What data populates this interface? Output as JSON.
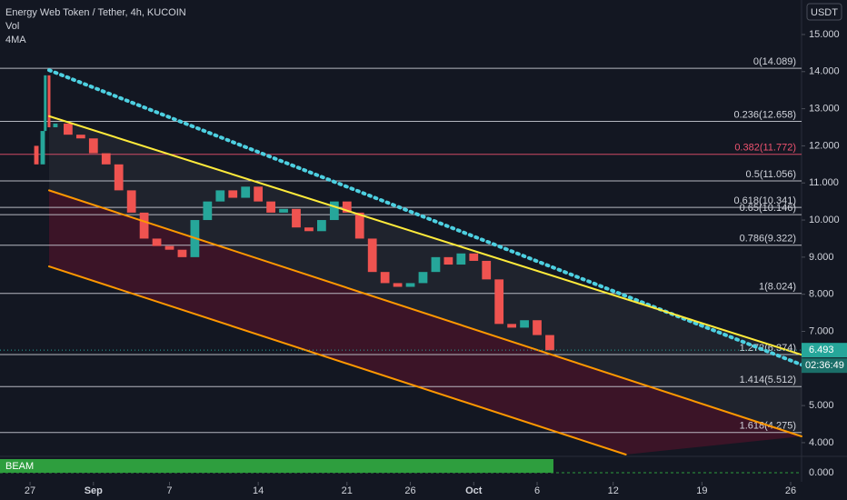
{
  "chart_data": {
    "type": "candles",
    "title": "Energy Web Token / Tether, 4h, KUCOIN",
    "indicators_header": [
      "Vol",
      "4MA"
    ],
    "currency": "USDT",
    "x": [
      0,
      0.5,
      1,
      1.2,
      1.5,
      2,
      3,
      4,
      5,
      6,
      7,
      8,
      9,
      10,
      11,
      12,
      13,
      14,
      15,
      16,
      17,
      18,
      19,
      20,
      21,
      22,
      23,
      24,
      25,
      26,
      27,
      28,
      29,
      30,
      31,
      32,
      33,
      34,
      35,
      36,
      37,
      38,
      39,
      40,
      41
    ],
    "values": [
      12.0,
      11.5,
      12.4,
      13.9,
      12.5,
      12.6,
      12.3,
      12.2,
      11.8,
      11.5,
      10.8,
      10.2,
      9.5,
      9.3,
      9.2,
      9.0,
      10.0,
      10.5,
      10.8,
      10.6,
      10.9,
      10.5,
      10.2,
      10.3,
      9.8,
      9.7,
      10.0,
      10.5,
      10.2,
      9.5,
      8.6,
      8.3,
      8.2,
      8.3,
      8.6,
      9.0,
      8.8,
      9.1,
      8.9,
      8.4,
      7.2,
      7.1,
      7.3,
      6.9,
      6.49
    ],
    "up_color": "#26a69a",
    "down_color": "#ef5350",
    "xlim": [
      -2.37,
      60.86
    ],
    "xticks": [
      {
        "value": 0,
        "label": "27"
      },
      {
        "value": 5,
        "label": "Sep"
      },
      {
        "value": 11,
        "label": "7"
      },
      {
        "value": 18,
        "label": "14"
      },
      {
        "value": 25,
        "label": "21"
      },
      {
        "value": 30,
        "label": "26"
      },
      {
        "value": 35,
        "label": "Oct"
      },
      {
        "value": 40,
        "label": "6"
      },
      {
        "value": 46,
        "label": "12"
      },
      {
        "value": 53,
        "label": "19"
      },
      {
        "value": 60,
        "label": "26"
      }
    ],
    "ylim": [
      3.68,
      15.93
    ],
    "yticks": [
      {
        "value": 15,
        "label": "15.000"
      },
      {
        "value": 14,
        "label": "14.000"
      },
      {
        "value": 13,
        "label": "13.000"
      },
      {
        "value": 12,
        "label": "12.000"
      },
      {
        "value": 11,
        "label": "11.000"
      },
      {
        "value": 10,
        "label": "10.000"
      },
      {
        "value": 9,
        "label": "9.000"
      },
      {
        "value": 8,
        "label": "8.000"
      },
      {
        "value": 7,
        "label": "7.000"
      },
      {
        "value": 5,
        "label": "5.000"
      },
      {
        "value": 4,
        "label": "4.000"
      }
    ],
    "fib_levels": [
      {
        "value": 14.089,
        "label": "0(14.089)",
        "color": "#d1d4dc"
      },
      {
        "value": 12.658,
        "label": "0.236(12.658)",
        "color": "#d1d4dc"
      },
      {
        "value": 11.772,
        "label": "0.382(11.772)",
        "color": "#ef5370"
      },
      {
        "value": 11.056,
        "label": "0.5(11.056)",
        "color": "#d1d4dc"
      },
      {
        "value": 10.341,
        "label": "0.618(10.341)",
        "color": "#d1d4dc"
      },
      {
        "value": 10.146,
        "label": "0.65(10.146)",
        "color": "#d1d4dc"
      },
      {
        "value": 9.322,
        "label": "0.786(9.322)",
        "color": "#d1d4dc"
      },
      {
        "value": 8.024,
        "label": "1(8.024)",
        "color": "#d1d4dc"
      },
      {
        "value": 6.374,
        "label": "1.272(6.374)",
        "color": "#d1d4dc"
      },
      {
        "value": 5.512,
        "label": "1.414(5.512)",
        "color": "#d1d4dc"
      },
      {
        "value": 4.275,
        "label": "1.618(4.275)",
        "color": "#d1d4dc"
      }
    ],
    "trend_lines": [
      {
        "color": "#4dd0e1",
        "style": "dotted",
        "x": [
          1.5,
          60.86
        ],
        "y": [
          14.04,
          6.1
        ]
      },
      {
        "color": "#ffeb3b",
        "style": "solid",
        "x": [
          1.5,
          60.86
        ],
        "y": [
          12.8,
          6.37
        ]
      },
      {
        "color": "#ff9800",
        "style": "solid",
        "x": [
          1.5,
          60.86
        ],
        "y": [
          10.8,
          4.17
        ]
      },
      {
        "color": "#ff9800",
        "style": "solid",
        "x": [
          1.5,
          47.0
        ],
        "y": [
          8.75,
          3.68
        ]
      }
    ],
    "last_price": {
      "value": 6.493,
      "label": "6.493",
      "countdown": "02:36:49"
    },
    "indicator": {
      "name": "BEAM",
      "color": "#2e9e3e",
      "yticks": [
        {
          "value": 0,
          "label": "0.000"
        }
      ]
    }
  }
}
